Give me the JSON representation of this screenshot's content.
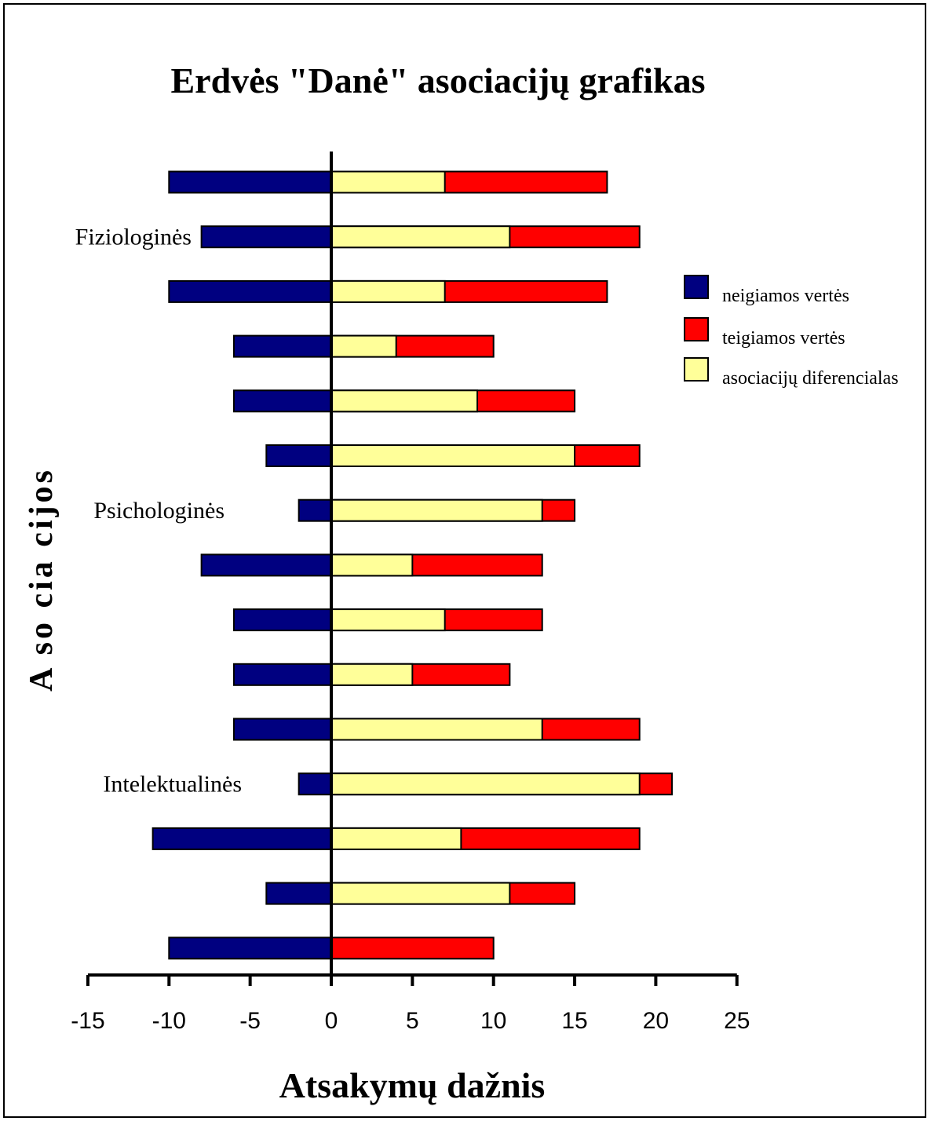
{
  "chart_data": {
    "type": "bar",
    "title": "Erdvės \"Danė\" asociacijų grafikas",
    "xlabel": "Atsakymų dažnis",
    "ylabel": "A so cia cijos",
    "xlim": [
      -15,
      25
    ],
    "xticks": [
      -15,
      -10,
      -5,
      0,
      5,
      10,
      15,
      20,
      25
    ],
    "legend_position": "right",
    "group_labels": [
      {
        "label": "Fiziologinės",
        "row": 1
      },
      {
        "label": "Psichologinės",
        "row": 6
      },
      {
        "label": "Intelektualinės",
        "row": 11
      }
    ],
    "series": [
      {
        "name": "neigiamos vertės",
        "color": "#000080",
        "values": [
          -10,
          -8,
          -10,
          -6,
          -6,
          -4,
          -2,
          -8,
          -6,
          -6,
          -6,
          -2,
          -11,
          -4,
          -10
        ]
      },
      {
        "name": "teigiamos vertės",
        "color": "#ff0000",
        "values": [
          17,
          19,
          17,
          10,
          15,
          19,
          15,
          13,
          13,
          11,
          19,
          21,
          19,
          15,
          10
        ]
      },
      {
        "name": "asociacijų diferencialas",
        "color": "#ffff99",
        "values": [
          7,
          11,
          7,
          4,
          9,
          15,
          13,
          5,
          7,
          5,
          13,
          19,
          8,
          11,
          0
        ]
      }
    ]
  }
}
